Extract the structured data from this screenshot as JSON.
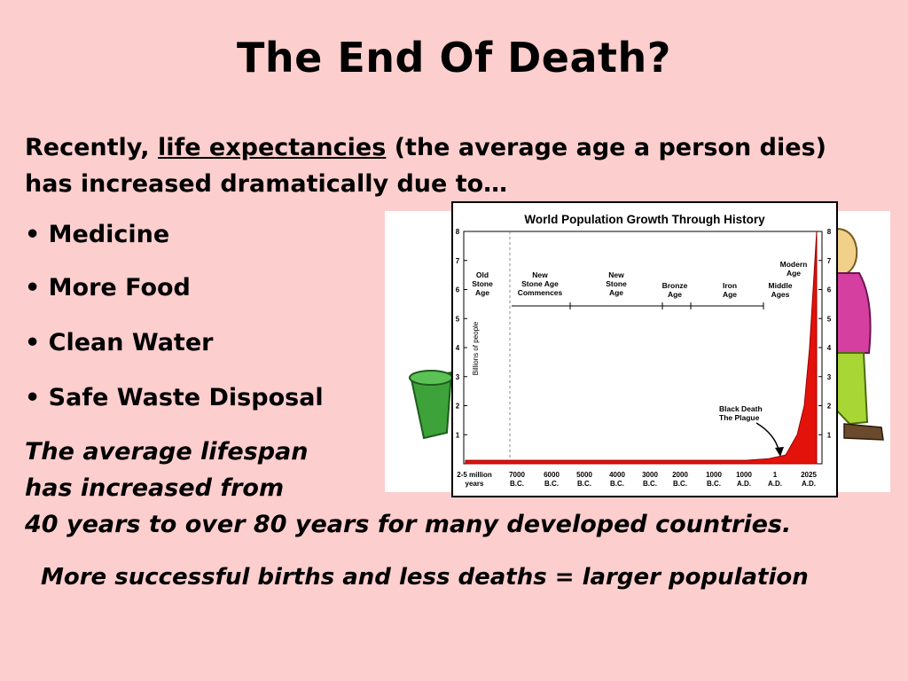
{
  "slide": {
    "title": "The End Of Death?",
    "intro_prefix": "Recently, ",
    "intro_link": "life expectancies",
    "intro_suffix": " (the average age a person dies) has increased dramatically due to…",
    "bullets": [
      "• Medicine",
      "• More Food",
      "• Clean Water",
      "• Safe Waste Disposal"
    ],
    "lifespan_line1": "The average lifespan",
    "lifespan_line2": "has increased from",
    "lifespan_line3": "40 years to over 80 years for many developed countries.",
    "summary": "More successful births and less deaths = larger population"
  },
  "chart_data": {
    "type": "area",
    "title": "World Population Growth Through History",
    "ylabel": "Billions of people",
    "ylim": [
      0,
      8
    ],
    "yticks": [
      "1",
      "2",
      "3",
      "4",
      "5",
      "6",
      "7",
      "8"
    ],
    "x_tick_labels": [
      [
        "2-5 million",
        "years"
      ],
      [
        "7000",
        "B.C."
      ],
      [
        "6000",
        "B.C."
      ],
      [
        "5000",
        "B.C."
      ],
      [
        "4000",
        "B.C."
      ],
      [
        "3000",
        "B.C."
      ],
      [
        "2000",
        "B.C."
      ],
      [
        "1000",
        "B.C."
      ],
      [
        "1000",
        "A.D."
      ],
      [
        "1",
        "A.D."
      ],
      [
        "2025",
        "A.D."
      ]
    ],
    "eras": [
      [
        "Old",
        "Stone",
        "Age"
      ],
      [
        "New",
        "Stone Age",
        "Commences"
      ],
      [
        "New",
        "Stone",
        "Age"
      ],
      [
        "Bronze",
        "Age"
      ],
      [
        "Iron",
        "Age"
      ],
      [
        "Middle",
        "Ages"
      ],
      [
        "Modern",
        "Age"
      ]
    ],
    "annotation": [
      "Black Death",
      "The Plague"
    ],
    "series": [
      {
        "values_billions": [
          0.005,
          0.005,
          0.01,
          0.02,
          0.03,
          0.05,
          0.07,
          0.1,
          0.17,
          0.3,
          1.0,
          2.0,
          4.0,
          6.0,
          8.0
        ]
      }
    ],
    "fill_color": "#e3120b"
  }
}
